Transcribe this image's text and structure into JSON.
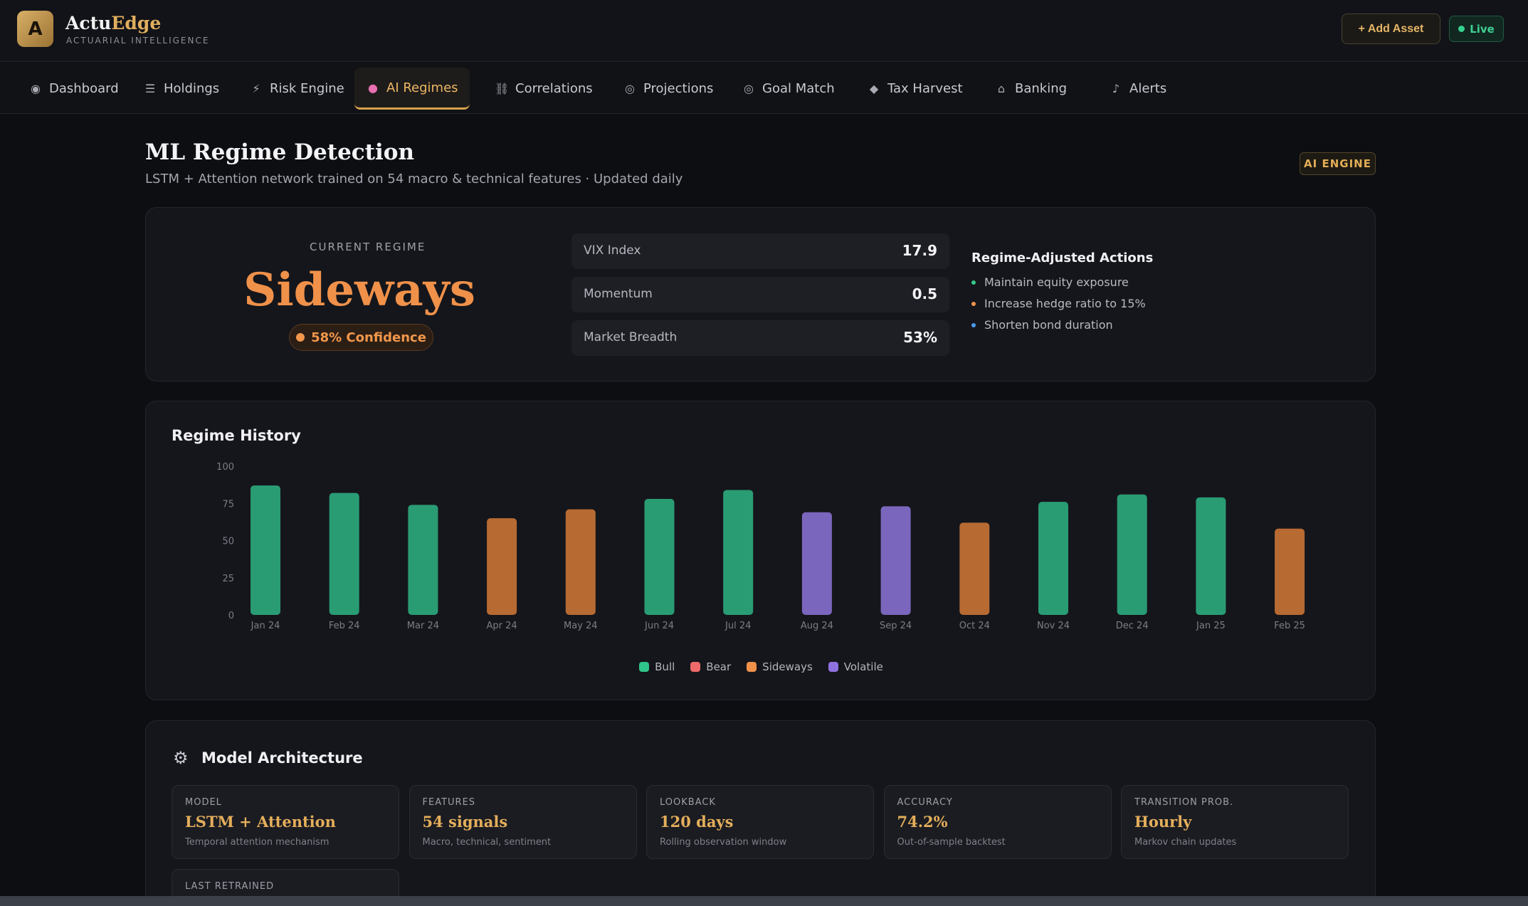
{
  "brand": {
    "logo_letter": "A",
    "name_part1": "Actu",
    "name_part2": "Edge",
    "tagline": "ACTUARIAL INTELLIGENCE"
  },
  "header": {
    "add_asset_label": "+ Add Asset",
    "live_label": "Live"
  },
  "nav": {
    "tabs": [
      {
        "label": "Dashboard",
        "icon": "◉",
        "icon_name": "dashboard-icon",
        "active": false
      },
      {
        "label": "Holdings",
        "icon": "☰",
        "icon_name": "list-icon",
        "active": false
      },
      {
        "label": "Risk Engine",
        "icon": "⚡",
        "icon_name": "lightning-icon",
        "active": false
      },
      {
        "label": "AI Regimes",
        "icon": "●",
        "icon_name": "brain-icon",
        "active": true
      },
      {
        "label": "Correlations",
        "icon": "⛓",
        "icon_name": "link-icon",
        "active": false
      },
      {
        "label": "Projections",
        "icon": "◎",
        "icon_name": "target-icon",
        "active": false
      },
      {
        "label": "Goal Match",
        "icon": "◎",
        "icon_name": "bullseye-icon",
        "active": false
      },
      {
        "label": "Tax Harvest",
        "icon": "◆",
        "icon_name": "gem-icon",
        "active": false
      },
      {
        "label": "Banking",
        "icon": "⌂",
        "icon_name": "bank-icon",
        "active": false
      },
      {
        "label": "Alerts",
        "icon": "♪",
        "icon_name": "bell-icon",
        "active": false
      }
    ]
  },
  "page": {
    "title": "ML Regime Detection",
    "subtitle": "LSTM + Attention network trained on 54 macro & technical features · Updated daily",
    "badge": "AI ENGINE"
  },
  "regime": {
    "label": "CURRENT REGIME",
    "name": "Sideways",
    "confidence": "58% Confidence",
    "metrics": [
      {
        "label": "VIX Index",
        "value": "17.9"
      },
      {
        "label": "Momentum",
        "value": "0.5"
      },
      {
        "label": "Market Breadth",
        "value": "53%"
      }
    ],
    "actions_title": "Regime-Adjusted Actions",
    "actions": [
      {
        "text": "Maintain equity exposure",
        "color": "#35c98a"
      },
      {
        "text": "Increase hedge ratio to 15%",
        "color": "#f0914a"
      },
      {
        "text": "Shorten bond duration",
        "color": "#4b9bf0"
      }
    ]
  },
  "history": {
    "title": "Regime History",
    "legend": [
      {
        "label": "Bull",
        "color": "#2fc48a"
      },
      {
        "label": "Bear",
        "color": "#f06a6a"
      },
      {
        "label": "Sideways",
        "color": "#f0914a"
      },
      {
        "label": "Volatile",
        "color": "#8f71e0"
      }
    ]
  },
  "chart_data": {
    "type": "bar",
    "title": "Regime History",
    "categories": [
      "Jan 24",
      "Feb 24",
      "Mar 24",
      "Apr 24",
      "May 24",
      "Jun 24",
      "Jul 24",
      "Aug 24",
      "Sep 24",
      "Oct 24",
      "Nov 24",
      "Dec 24",
      "Jan 25",
      "Feb 25"
    ],
    "values": [
      87,
      82,
      74,
      65,
      71,
      78,
      84,
      69,
      73,
      62,
      76,
      81,
      79,
      58
    ],
    "regimes": [
      "Bull",
      "Bull",
      "Bull",
      "Sideways",
      "Sideways",
      "Bull",
      "Bull",
      "Volatile",
      "Volatile",
      "Sideways",
      "Bull",
      "Bull",
      "Bull",
      "Sideways"
    ],
    "colors": {
      "Bull": "#2a9c74",
      "Bear": "#c0504f",
      "Sideways": "#b76a32",
      "Volatile": "#7b66bd"
    },
    "yticks": [
      "100",
      "75",
      "50",
      "25",
      "0"
    ],
    "ylim": [
      0,
      100
    ],
    "grid": false,
    "legend_position": "bottom-center"
  },
  "architecture": {
    "title": "Model Architecture",
    "items": [
      {
        "label": "MODEL",
        "value": "LSTM + Attention",
        "desc": "Temporal attention mechanism"
      },
      {
        "label": "FEATURES",
        "value": "54 signals",
        "desc": "Macro, technical, sentiment"
      },
      {
        "label": "LOOKBACK",
        "value": "120 days",
        "desc": "Rolling observation window"
      },
      {
        "label": "ACCURACY",
        "value": "74.2%",
        "desc": "Out-of-sample backtest"
      },
      {
        "label": "TRANSITION PROB.",
        "value": "Hourly",
        "desc": "Markov chain updates"
      },
      {
        "label": "LAST RETRAINED",
        "value": "",
        "desc": ""
      }
    ]
  }
}
